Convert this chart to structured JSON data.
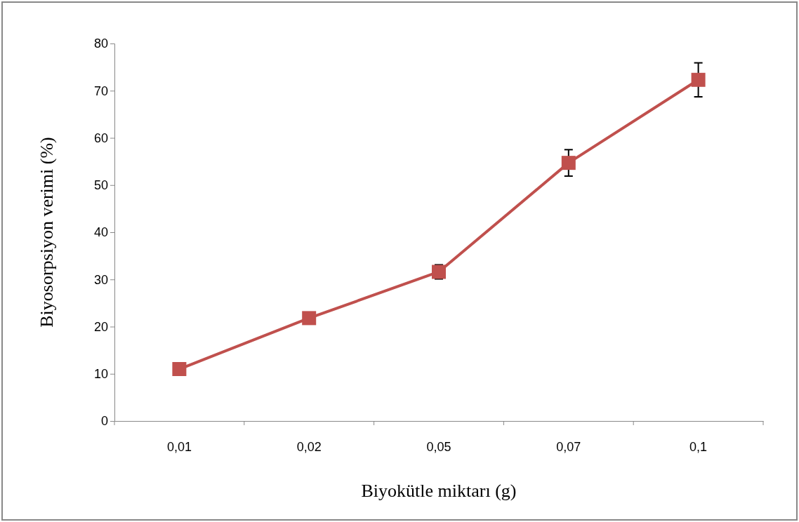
{
  "chart_data": {
    "type": "line",
    "xlabel": "Biyokütle miktarı (g)",
    "ylabel": "Biyosorpsiyon verimi (%)",
    "categories": [
      "0,01",
      "0,02",
      "0,05",
      "0,07",
      "0,1"
    ],
    "series": [
      {
        "color": "#c0504d",
        "values": [
          11.0,
          21.8,
          31.6,
          54.7,
          72.3
        ],
        "errors": [
          null,
          null,
          1.5,
          2.8,
          3.6
        ]
      }
    ],
    "ylim": [
      0,
      80
    ],
    "yticks": [
      0,
      10,
      20,
      30,
      40,
      50,
      60,
      70,
      80
    ],
    "marker": "square",
    "line_style": "solid",
    "grid": false,
    "legend": false
  }
}
